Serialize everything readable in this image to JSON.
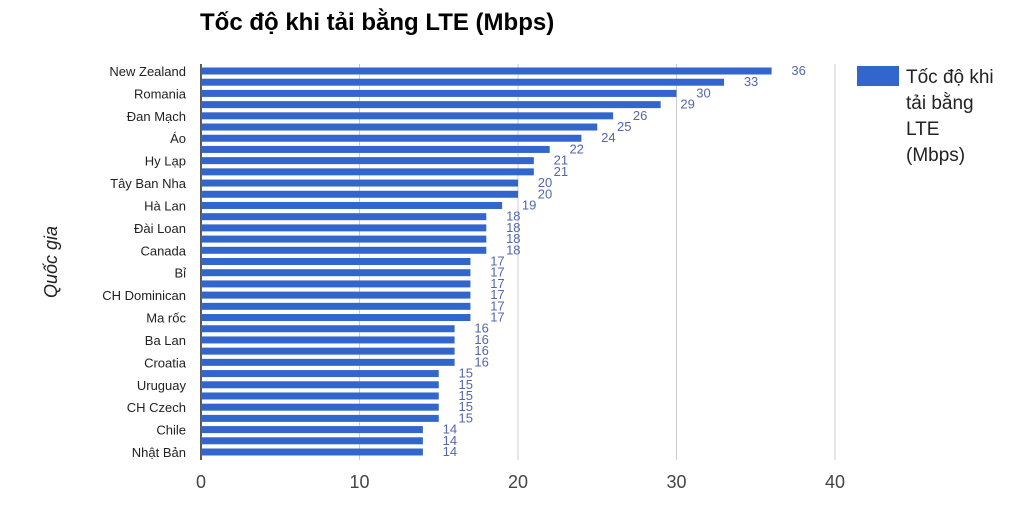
{
  "chart_data": {
    "type": "bar",
    "orientation": "horizontal",
    "title": "Tốc độ khi tải bằng LTE (Mbps)",
    "xlabel": "",
    "ylabel": "Quốc gia",
    "xlim": [
      0,
      40
    ],
    "xticks": [
      0,
      10,
      20,
      30,
      40
    ],
    "grid": true,
    "legend_position": "right",
    "bar_color": "#3366cc",
    "categories": [
      "New Zealand",
      "",
      "Romania",
      "",
      "Đan Mạch",
      "",
      "Áo",
      "",
      "Hy Lạp",
      "",
      "Tây Ban Nha",
      "",
      "Hà Lan",
      "",
      "Đài Loan",
      "",
      "Canada",
      "",
      "Bỉ",
      "",
      "CH Dominican",
      "",
      "Ma rốc",
      "",
      "Ba Lan",
      "",
      "Croatia",
      "",
      "Uruguay",
      "",
      "CH Czech",
      "",
      "Chile",
      "",
      "Nhật Bản"
    ],
    "series": [
      {
        "name": "Tốc độ khi tải bằng LTE (Mbps)",
        "legend_lines": [
          "Tốc độ khi",
          "tải bằng",
          "LTE",
          "(Mbps)"
        ],
        "values": [
          36,
          33,
          30,
          29,
          26,
          25,
          24,
          22,
          21,
          21,
          20,
          20,
          19,
          18,
          18,
          18,
          18,
          17,
          17,
          17,
          17,
          17,
          17,
          16,
          16,
          16,
          16,
          15,
          15,
          15,
          15,
          15,
          14,
          14,
          14
        ]
      }
    ]
  }
}
